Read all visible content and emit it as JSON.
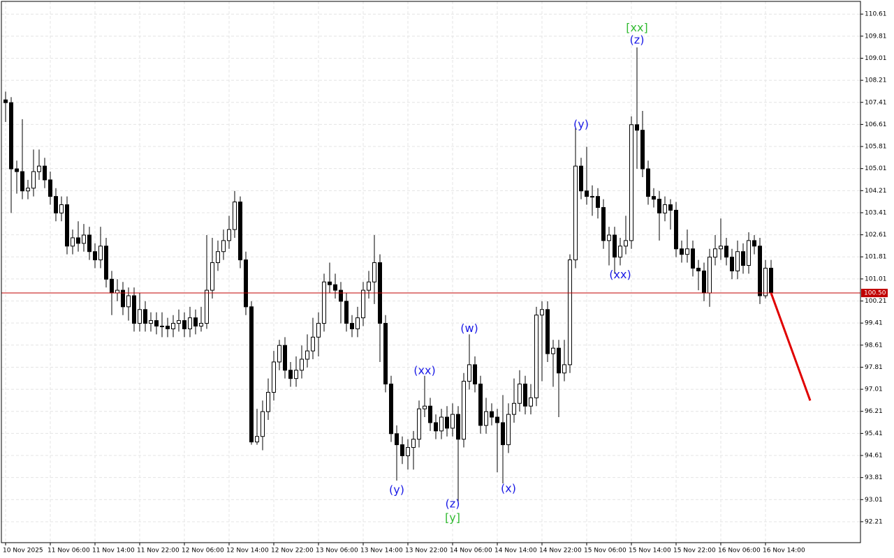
{
  "chart_data": {
    "type": "candlestick",
    "categories": [
      "10 Nov 2025",
      null,
      null,
      null,
      null,
      null,
      null,
      null,
      "11 Nov 06:00",
      null,
      null,
      null,
      null,
      null,
      null,
      null,
      "11 Nov 14:00",
      null,
      null,
      null,
      null,
      null,
      null,
      null,
      "11 Nov 22:00",
      null,
      null,
      null,
      null,
      null,
      null,
      null,
      "12 Nov 06:00",
      null,
      null,
      null,
      null,
      null,
      null,
      null,
      "12 Nov 14:00",
      null,
      null,
      null,
      null,
      null,
      null,
      null,
      "12 Nov 22:00",
      null,
      null,
      null,
      null,
      null,
      null,
      null,
      "13 Nov 06:00",
      null,
      null,
      null,
      null,
      null,
      null,
      null,
      "13 Nov 14:00",
      null,
      null,
      null,
      null,
      null,
      null,
      null,
      "13 Nov 22:00",
      null,
      null,
      null,
      null,
      null,
      null,
      null,
      "14 Nov 06:00",
      null,
      null,
      null,
      null,
      null,
      null,
      null,
      "14 Nov 14:00",
      null,
      null,
      null,
      null,
      null,
      null,
      null,
      "14 Nov 22:00",
      null,
      null,
      null,
      null,
      null,
      null,
      null,
      "15 Nov 06:00",
      null,
      null,
      null,
      null,
      null,
      null,
      null,
      "15 Nov 14:00",
      null,
      null,
      null,
      null,
      null,
      null,
      null,
      "15 Nov 22:00",
      null,
      null,
      null,
      null,
      null,
      null,
      null,
      "16 Nov 06:00",
      null,
      null,
      null,
      null,
      null,
      null,
      null,
      "16 Nov 14:00",
      null
    ],
    "open": [
      107.5,
      107.4,
      105.0,
      104.9,
      104.2,
      104.3,
      104.9,
      105.1,
      104.6,
      104.0,
      103.4,
      103.7,
      102.2,
      102.5,
      102.3,
      102.6,
      102.0,
      101.7,
      102.2,
      101.0,
      100.5,
      100.6,
      100.0,
      100.4,
      99.4,
      99.9,
      99.4,
      99.5,
      99.3,
      99.3,
      99.2,
      99.4,
      99.5,
      99.2,
      99.6,
      99.3,
      99.4,
      100.6,
      101.6,
      102.0,
      102.4,
      102.8,
      103.8,
      101.7,
      100.0,
      95.1,
      95.3,
      96.2,
      96.9,
      98.0,
      98.6,
      97.7,
      97.4,
      97.7,
      98.1,
      98.4,
      98.9,
      99.4,
      100.9,
      100.8,
      100.6,
      100.2,
      99.4,
      99.2,
      99.6,
      100.6,
      100.9,
      101.6,
      99.4,
      97.2,
      95.4,
      95.0,
      94.6,
      94.9,
      95.2,
      96.3,
      96.4,
      95.8,
      95.5,
      96.0,
      95.6,
      96.1,
      95.2,
      97.3,
      97.9,
      97.2,
      95.7,
      96.2,
      96.0,
      95.8,
      95.0,
      96.1,
      96.5,
      97.2,
      96.4,
      96.7,
      99.7,
      99.9,
      98.3,
      98.5,
      97.6,
      97.9,
      101.7,
      105.1,
      104.2,
      104.0,
      104.0,
      103.6,
      102.4,
      102.6,
      101.8,
      102.2,
      102.4,
      106.6,
      106.4,
      105.0,
      104.0,
      103.9,
      103.4,
      103.7,
      103.5,
      102.1,
      101.9,
      102.1,
      101.4,
      101.3,
      100.5,
      101.8,
      102.1,
      102.2,
      101.8,
      101.3,
      102.0,
      101.5,
      102.4,
      102.2,
      100.4,
      101.4
    ],
    "high": [
      107.8,
      107.6,
      105.3,
      106.8,
      104.6,
      105.7,
      105.7,
      105.4,
      104.9,
      104.3,
      104.0,
      104.0,
      102.8,
      103.1,
      103.0,
      102.9,
      102.3,
      102.9,
      102.5,
      101.3,
      101.0,
      100.9,
      100.7,
      100.7,
      100.5,
      100.2,
      99.8,
      99.8,
      99.8,
      99.6,
      99.7,
      99.9,
      99.8,
      100.0,
      99.9,
      100.0,
      102.6,
      102.5,
      102.4,
      102.8,
      103.3,
      104.2,
      104.0,
      102.0,
      100.2,
      96.3,
      96.6,
      97.4,
      98.4,
      98.8,
      98.9,
      98.0,
      98.2,
      98.6,
      99.0,
      99.6,
      99.8,
      101.2,
      101.6,
      101.2,
      100.9,
      100.5,
      99.7,
      100.0,
      100.9,
      101.3,
      102.6,
      101.9,
      99.7,
      97.5,
      95.7,
      95.3,
      95.2,
      95.5,
      96.6,
      97.5,
      96.7,
      96.1,
      96.3,
      96.4,
      96.5,
      96.4,
      97.6,
      99.0,
      98.2,
      97.5,
      96.7,
      96.5,
      96.3,
      96.8,
      96.5,
      97.4,
      97.7,
      97.5,
      97.2,
      100.0,
      100.2,
      100.2,
      98.8,
      98.8,
      98.8,
      101.9,
      106.5,
      105.4,
      105.8,
      104.4,
      104.3,
      103.9,
      102.9,
      102.9,
      102.5,
      103.3,
      106.9,
      109.4,
      107.1,
      105.3,
      104.3,
      104.2,
      104.0,
      103.9,
      103.8,
      102.4,
      102.8,
      102.4,
      101.7,
      101.6,
      102.1,
      102.6,
      103.2,
      102.5,
      102.1,
      102.4,
      102.3,
      102.7,
      102.6,
      102.5,
      101.7,
      101.7
    ],
    "low": [
      106.7,
      103.4,
      104.1,
      103.9,
      103.9,
      104.0,
      104.6,
      104.3,
      103.7,
      103.1,
      103.1,
      101.9,
      101.9,
      102.0,
      102.0,
      101.7,
      101.4,
      101.4,
      100.7,
      99.7,
      100.2,
      99.7,
      99.5,
      99.1,
      99.1,
      99.1,
      99.1,
      99.0,
      98.9,
      98.9,
      98.9,
      99.1,
      98.9,
      98.9,
      99.0,
      99.1,
      99.2,
      100.3,
      101.3,
      101.7,
      102.1,
      102.5,
      101.4,
      99.7,
      95.0,
      95.0,
      94.8,
      95.9,
      96.6,
      97.7,
      97.4,
      97.1,
      97.1,
      97.4,
      97.8,
      98.1,
      98.2,
      99.1,
      100.5,
      100.3,
      99.4,
      99.1,
      98.9,
      98.9,
      99.3,
      100.3,
      100.1,
      98.0,
      96.9,
      95.1,
      93.7,
      94.3,
      94.1,
      94.1,
      94.9,
      96.0,
      95.5,
      95.2,
      95.2,
      95.3,
      95.3,
      92.9,
      94.9,
      97.0,
      96.9,
      95.4,
      95.4,
      95.7,
      94.0,
      93.6,
      94.7,
      95.8,
      96.2,
      96.1,
      96.1,
      96.4,
      97.3,
      98.0,
      97.1,
      96.0,
      97.3,
      97.6,
      101.4,
      103.9,
      103.7,
      103.3,
      103.2,
      102.1,
      101.5,
      101.2,
      101.5,
      101.9,
      102.1,
      105.0,
      104.7,
      103.7,
      103.6,
      102.4,
      103.1,
      102.8,
      101.8,
      101.6,
      101.6,
      101.1,
      100.6,
      100.2,
      100.0,
      101.5,
      101.7,
      101.5,
      101.0,
      101.0,
      101.2,
      101.2,
      101.9,
      100.1,
      100.3,
      100.4
    ],
    "close": [
      107.4,
      105.0,
      104.9,
      104.2,
      104.3,
      104.9,
      105.1,
      104.6,
      104.0,
      103.4,
      103.7,
      102.2,
      102.5,
      102.3,
      102.6,
      102.0,
      101.7,
      102.2,
      101.0,
      100.5,
      100.6,
      100.0,
      100.4,
      99.4,
      99.9,
      99.4,
      99.5,
      99.3,
      99.3,
      99.2,
      99.4,
      99.5,
      99.2,
      99.6,
      99.3,
      99.4,
      100.6,
      101.6,
      102.0,
      102.4,
      102.8,
      103.8,
      101.7,
      100.0,
      95.1,
      95.3,
      96.2,
      96.9,
      98.0,
      98.6,
      97.7,
      97.4,
      97.7,
      98.1,
      98.4,
      98.9,
      99.4,
      100.9,
      100.8,
      100.6,
      100.2,
      99.4,
      99.2,
      99.6,
      100.6,
      100.9,
      101.6,
      99.4,
      97.2,
      95.4,
      95.0,
      94.6,
      94.9,
      95.2,
      96.3,
      96.4,
      95.8,
      95.5,
      96.0,
      95.6,
      96.1,
      95.2,
      97.3,
      97.9,
      97.2,
      95.7,
      96.2,
      96.0,
      95.8,
      95.0,
      96.1,
      96.5,
      97.2,
      96.4,
      96.7,
      99.7,
      99.9,
      98.3,
      98.5,
      97.6,
      97.9,
      101.7,
      105.1,
      104.2,
      104.0,
      104.0,
      103.6,
      102.4,
      102.6,
      101.8,
      102.2,
      102.4,
      106.6,
      106.4,
      105.0,
      104.0,
      103.9,
      103.4,
      103.7,
      103.5,
      102.1,
      101.9,
      102.1,
      101.4,
      101.3,
      100.5,
      101.8,
      102.1,
      102.2,
      101.8,
      101.3,
      102.0,
      101.5,
      102.4,
      102.2,
      100.4,
      101.4,
      100.5
    ],
    "up_color": "#ffffff",
    "down_color": "#000000",
    "xlim": [
      -0.75,
      153
    ],
    "ylim": [
      91.45,
      111.07
    ],
    "yticks": [
      110.61,
      109.81,
      109.01,
      108.21,
      107.41,
      106.61,
      105.81,
      105.01,
      104.21,
      103.41,
      102.61,
      101.81,
      101.01,
      100.21,
      99.41,
      98.61,
      97.81,
      97.01,
      96.21,
      95.41,
      94.61,
      93.81,
      93.01,
      92.21
    ],
    "grid": true,
    "current_price": {
      "value": 100.5,
      "label": "100.50",
      "color": "#c00000"
    },
    "projection": {
      "x": [
        137,
        144
      ],
      "values": [
        100.5,
        96.6
      ],
      "color": "#e00000"
    },
    "annotations": [
      {
        "text": "[xx]",
        "x": 113,
        "y": 110.1,
        "color": "#33bb33"
      },
      {
        "text": "(z)",
        "x": 113,
        "y": 109.65,
        "color": "#1a1ae6"
      },
      {
        "text": "(y)",
        "x": 103,
        "y": 106.6,
        "color": "#1a1ae6"
      },
      {
        "text": "(xx)",
        "x": 110,
        "y": 101.15,
        "color": "#1a1ae6"
      },
      {
        "text": "(w)",
        "x": 83,
        "y": 99.2,
        "color": "#1a1ae6"
      },
      {
        "text": "(xx)",
        "x": 75,
        "y": 97.67,
        "color": "#1a1ae6"
      },
      {
        "text": "(y)",
        "x": 70,
        "y": 93.35,
        "color": "#1a1ae6"
      },
      {
        "text": "(z)",
        "x": 80,
        "y": 92.84,
        "color": "#1a1ae6"
      },
      {
        "text": "[y]",
        "x": 80,
        "y": 92.34,
        "color": "#33bb33"
      },
      {
        "text": "(x)",
        "x": 90,
        "y": 93.4,
        "color": "#1a1ae6"
      }
    ]
  }
}
